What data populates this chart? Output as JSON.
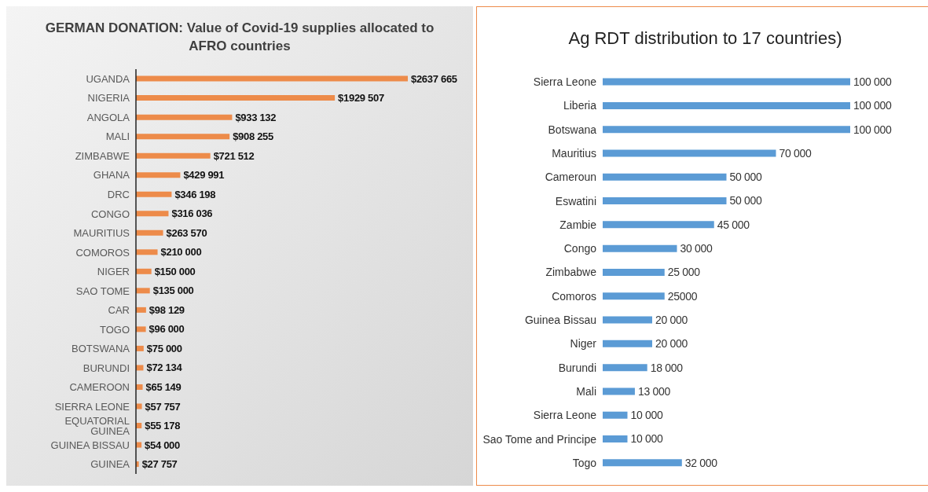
{
  "chart_data": [
    {
      "type": "bar",
      "orientation": "horizontal",
      "title": "GERMAN DONATION: Value of Covid-19 supplies allocated to AFRO countries",
      "categories": [
        "UGANDA",
        "NIGERIA",
        "ANGOLA",
        "MALI",
        "ZIMBABWE",
        "GHANA",
        "DRC",
        "CONGO",
        "MAURITIUS",
        "COMOROS",
        "NIGER",
        "SAO TOME",
        "CAR",
        "TOGO",
        "BOTSWANA",
        "BURUNDI",
        "CAMEROON",
        "SIERRA LEONE",
        "EQUATORIAL GUINEA",
        "GUINEA BISSAU",
        "GUINEA"
      ],
      "values": [
        2637665,
        1929507,
        933132,
        908255,
        721512,
        429991,
        346198,
        316036,
        263570,
        210000,
        150000,
        135000,
        98129,
        96000,
        75000,
        72134,
        65149,
        57757,
        55178,
        54000,
        27757
      ],
      "value_labels": [
        "$2637 665",
        "$1929 507",
        "$933 132",
        "$908 255",
        "$721 512",
        "$429 991",
        "$346 198",
        "$316 036",
        "$263 570",
        "$210 000",
        "$150 000",
        "$135 000",
        "$98 129",
        "$96 000",
        "$75 000",
        "$72 134",
        "$65 149",
        "$57 757",
        "$55 178",
        "$54 000",
        "$27 757"
      ],
      "color": "#ed8b4a",
      "tick_labels": "y",
      "grid": false
    },
    {
      "type": "bar",
      "orientation": "horizontal",
      "title": "Ag RDT distribution to 17 countries)",
      "categories": [
        "Sierra Leone",
        "Liberia",
        "Botswana",
        "Mauritius",
        "Cameroun",
        "Eswatini",
        "Zambie",
        "Congo",
        "Zimbabwe",
        "Comoros",
        "Guinea Bissau",
        "Niger",
        "Burundi",
        "Mali",
        "Sierra Leone",
        "Sao Tome and Principe",
        "Togo"
      ],
      "values": [
        100000,
        100000,
        100000,
        70000,
        50000,
        50000,
        45000,
        30000,
        25000,
        25000,
        20000,
        20000,
        18000,
        13000,
        10000,
        10000,
        32000
      ],
      "value_labels": [
        "100 000",
        "100 000",
        "100 000",
        "70 000",
        "50 000",
        "50 000",
        "45 000",
        "30 000",
        "25 000",
        "25000",
        "20 000",
        "20 000",
        "18 000",
        "13 000",
        "10 000",
        "10 000",
        "32 000"
      ],
      "color": "#5b9bd5",
      "tick_labels": "y"
    }
  ]
}
